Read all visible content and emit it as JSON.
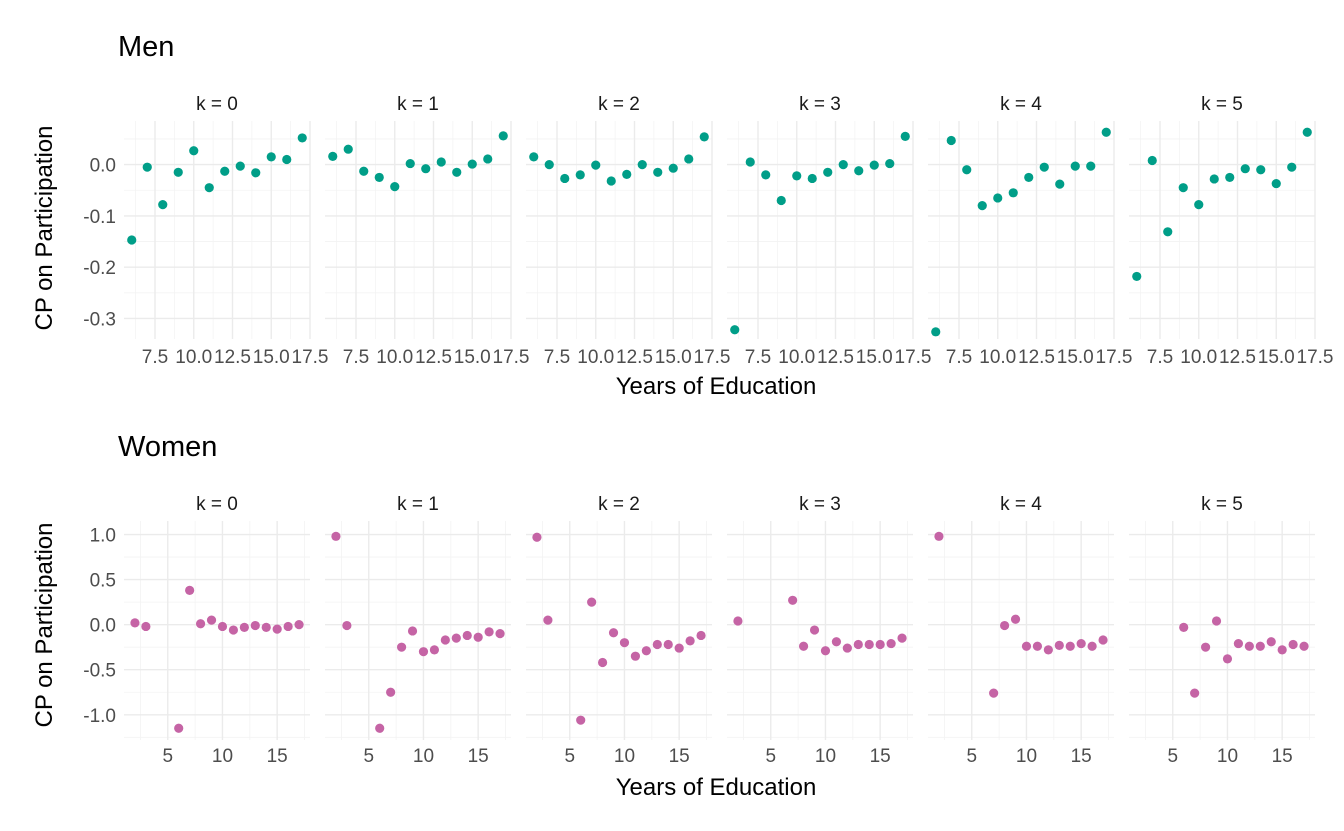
{
  "chart_data": [
    {
      "type": "scatter",
      "title": "Men",
      "xlabel": "Years of Education",
      "ylabel": "CP on Participation",
      "color": "#009E88",
      "xlim": [
        5.5,
        17.5
      ],
      "ylim": [
        -0.34,
        0.085
      ],
      "x_ticks": [
        7.5,
        10.0,
        12.5,
        15.0,
        17.5
      ],
      "x_tick_labels": [
        "7.5",
        "10.0",
        "12.5",
        "15.0",
        "17.5"
      ],
      "y_ticks": [
        0.0,
        -0.1,
        -0.2,
        -0.3
      ],
      "y_tick_labels": [
        "0.0",
        "-0.1",
        "-0.2",
        "-0.3"
      ],
      "grid": true,
      "facets": [
        {
          "label": "k = 0",
          "x": [
            6,
            7,
            8,
            9,
            10,
            11,
            12,
            13,
            14,
            15,
            16,
            17
          ],
          "y": [
            -0.147,
            -0.005,
            -0.078,
            -0.015,
            0.027,
            -0.045,
            -0.013,
            -0.003,
            -0.016,
            0.015,
            0.01,
            0.052
          ]
        },
        {
          "label": "k = 1",
          "x": [
            6,
            7,
            8,
            9,
            10,
            11,
            12,
            13,
            14,
            15,
            16,
            17
          ],
          "y": [
            0.016,
            0.03,
            -0.013,
            -0.025,
            -0.043,
            0.002,
            -0.008,
            0.005,
            -0.015,
            0.001,
            0.011,
            0.056
          ]
        },
        {
          "label": "k = 2",
          "x": [
            6,
            7,
            8,
            9,
            10,
            11,
            12,
            13,
            14,
            15,
            16,
            17
          ],
          "y": [
            0.015,
            0.0,
            -0.027,
            -0.02,
            -0.001,
            -0.032,
            -0.019,
            0.0,
            -0.015,
            -0.007,
            0.011,
            0.054
          ]
        },
        {
          "label": "k = 3",
          "x": [
            6,
            7,
            8,
            9,
            10,
            11,
            12,
            13,
            14,
            15,
            16,
            17
          ],
          "y": [
            -0.322,
            0.005,
            -0.02,
            -0.07,
            -0.022,
            -0.027,
            -0.015,
            0.0,
            -0.012,
            -0.001,
            0.002,
            0.055
          ]
        },
        {
          "label": "k = 4",
          "x": [
            6,
            7,
            8,
            9,
            10,
            11,
            12,
            13,
            14,
            15,
            16,
            17
          ],
          "y": [
            -0.326,
            0.047,
            -0.01,
            -0.08,
            -0.065,
            -0.055,
            -0.025,
            -0.005,
            -0.038,
            -0.003,
            -0.003,
            0.063
          ]
        },
        {
          "label": "k = 5",
          "x": [
            6,
            7,
            8,
            9,
            10,
            11,
            12,
            13,
            14,
            15,
            16,
            17
          ],
          "y": [
            -0.218,
            0.008,
            -0.131,
            -0.045,
            -0.078,
            -0.028,
            -0.025,
            -0.008,
            -0.01,
            -0.037,
            -0.005,
            0.063
          ]
        }
      ]
    },
    {
      "type": "scatter",
      "title": "Women",
      "xlabel": "Years of Education",
      "ylabel": "CP on Participation",
      "color": "#C564A5",
      "xlim": [
        1.0,
        18.0
      ],
      "ylim": [
        -1.28,
        1.15
      ],
      "x_ticks": [
        5,
        10,
        15
      ],
      "x_tick_labels": [
        "5",
        "10",
        "15"
      ],
      "y_ticks": [
        1.0,
        0.5,
        0.0,
        -0.5,
        -1.0
      ],
      "y_tick_labels": [
        "1.0",
        "0.5",
        "0.0",
        "-0.5",
        "-1.0"
      ],
      "grid": true,
      "facets": [
        {
          "label": "k = 0",
          "x": [
            2,
            3,
            6,
            7,
            8,
            9,
            10,
            11,
            12,
            13,
            14,
            15,
            16,
            17
          ],
          "y": [
            0.02,
            -0.02,
            -1.15,
            0.38,
            0.01,
            0.05,
            -0.02,
            -0.06,
            -0.03,
            -0.01,
            -0.03,
            -0.05,
            -0.02,
            0.0
          ]
        },
        {
          "label": "k = 1",
          "x": [
            2,
            3,
            6,
            7,
            8,
            9,
            10,
            11,
            12,
            13,
            14,
            15,
            16,
            17
          ],
          "y": [
            0.98,
            -0.01,
            -1.15,
            -0.75,
            -0.25,
            -0.07,
            -0.3,
            -0.28,
            -0.17,
            -0.15,
            -0.12,
            -0.14,
            -0.08,
            -0.1
          ]
        },
        {
          "label": "k = 2",
          "x": [
            2,
            3,
            6,
            7,
            8,
            9,
            10,
            11,
            12,
            13,
            14,
            15,
            16,
            17
          ],
          "y": [
            0.97,
            0.05,
            -1.06,
            0.25,
            -0.42,
            -0.09,
            -0.2,
            -0.35,
            -0.29,
            -0.22,
            -0.22,
            -0.26,
            -0.18,
            -0.12
          ]
        },
        {
          "label": "k = 3",
          "x": [
            2,
            7,
            8,
            9,
            10,
            11,
            12,
            13,
            14,
            15,
            16,
            17
          ],
          "y": [
            0.04,
            0.27,
            -0.24,
            -0.06,
            -0.29,
            -0.19,
            -0.26,
            -0.22,
            -0.22,
            -0.22,
            -0.21,
            -0.15
          ]
        },
        {
          "label": "k = 4",
          "x": [
            2,
            7,
            8,
            9,
            10,
            11,
            12,
            13,
            14,
            15,
            16,
            17
          ],
          "y": [
            0.98,
            -0.76,
            -0.01,
            0.06,
            -0.24,
            -0.24,
            -0.28,
            -0.23,
            -0.24,
            -0.21,
            -0.24,
            -0.17
          ]
        },
        {
          "label": "k = 5",
          "x": [
            6,
            7,
            8,
            9,
            10,
            11,
            12,
            13,
            14,
            15,
            16,
            17
          ],
          "y": [
            -0.03,
            -0.76,
            -0.25,
            0.04,
            -0.38,
            -0.21,
            -0.24,
            -0.24,
            -0.19,
            -0.28,
            -0.22,
            -0.24
          ]
        }
      ]
    }
  ]
}
